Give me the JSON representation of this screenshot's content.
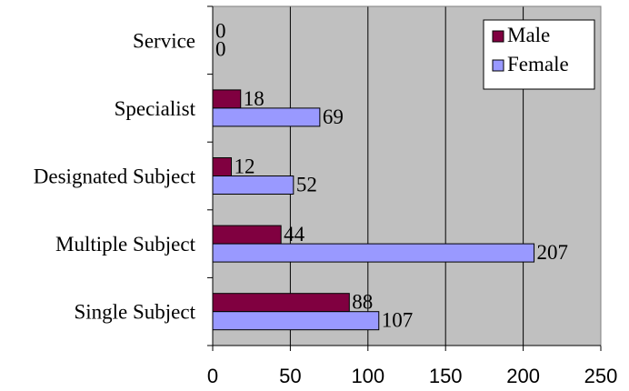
{
  "chart_data": {
    "type": "bar",
    "orientation": "horizontal",
    "categories": [
      "Service",
      "Specialist",
      "Designated Subject",
      "Multiple Subject",
      "Single Subject"
    ],
    "category_display": [
      "Service",
      "Specialist ",
      "Designated Subject",
      "Multiple Subject",
      "Single Subject"
    ],
    "series": [
      {
        "name": "Male",
        "values": [
          0,
          18,
          12,
          44,
          88
        ],
        "color": "#800040"
      },
      {
        "name": "Female",
        "values": [
          0,
          69,
          52,
          207,
          107
        ],
        "color": "#9999ff"
      }
    ],
    "xlim": [
      0,
      250
    ],
    "xticks": [
      0,
      50,
      100,
      150,
      200,
      250
    ],
    "plot_background": "#c0c0c0",
    "grid": true,
    "legend_position": "top-right"
  }
}
